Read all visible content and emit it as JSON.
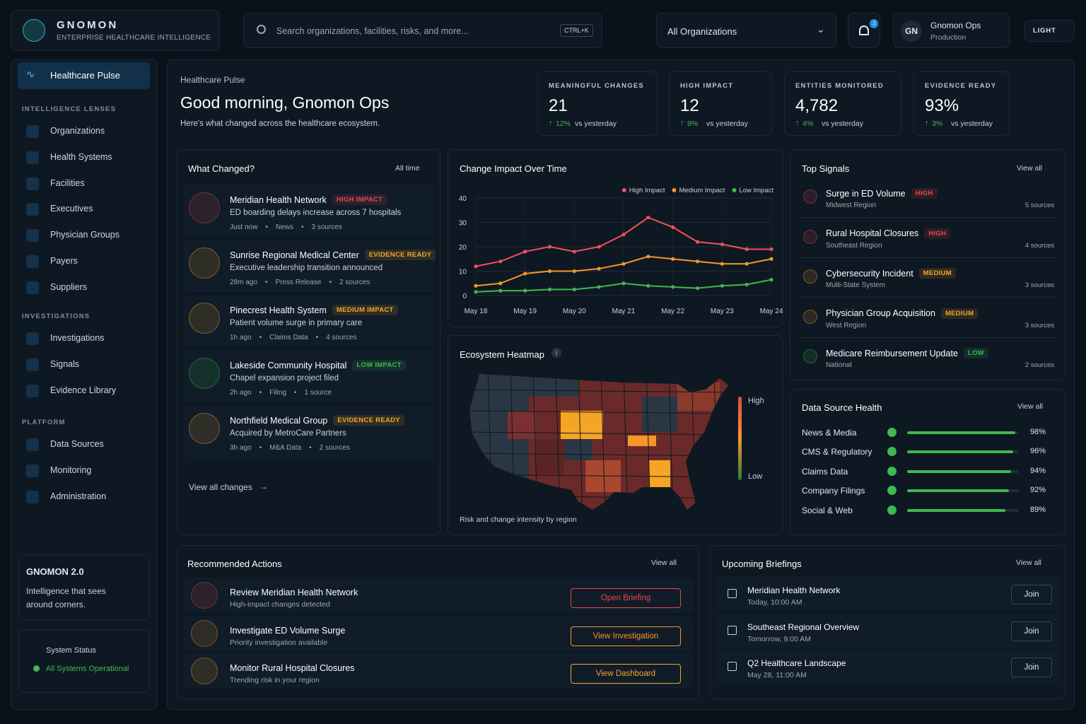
{
  "brand": {
    "name": "GNOMON",
    "tagline": "ENTERPRISE HEALTHCARE INTELLIGENCE"
  },
  "search": {
    "placeholder": "Search organizations, facilities, risks, and more...",
    "shortcut": "CTRL+K"
  },
  "org_select": "All Organizations",
  "notifications": "3",
  "user": {
    "initials": "GN",
    "name": "Gnomon Ops",
    "env": "Production"
  },
  "theme": "LIGHT",
  "nav": {
    "active": "Healthcare Pulse",
    "sections": [
      {
        "title": "INTELLIGENCE LENSES",
        "items": [
          "Organizations",
          "Health Systems",
          "Facilities",
          "Executives",
          "Physician Groups",
          "Payers",
          "Suppliers"
        ]
      },
      {
        "title": "INVESTIGATIONS",
        "items": [
          "Investigations",
          "Signals",
          "Evidence Library"
        ]
      },
      {
        "title": "PLATFORM",
        "items": [
          "Data Sources",
          "Monitoring",
          "Administration"
        ]
      }
    ]
  },
  "promo": {
    "title": "GNOMON 2.0",
    "text": "Intelligence that sees around corners."
  },
  "status": {
    "title": "System Status",
    "value": "All Systems Operational"
  },
  "header": {
    "crumb": "Healthcare Pulse",
    "greeting": "Good morning, Gnomon Ops",
    "subtitle": "Here's what changed across the healthcare ecosystem."
  },
  "kpis": [
    {
      "label": "MEANINGFUL CHANGES",
      "value": "21",
      "delta": "12%",
      "delta_text": "vs yesterday"
    },
    {
      "label": "HIGH IMPACT",
      "value": "12",
      "delta": "9%",
      "delta_text": "vs yesterday"
    },
    {
      "label": "ENTITIES MONITORED",
      "value": "4,782",
      "delta": "4%",
      "delta_text": "vs yesterday"
    },
    {
      "label": "EVIDENCE READY",
      "value": "93%",
      "delta": "3%",
      "delta_text": "vs yesterday"
    }
  ],
  "changes": {
    "title": "What Changed?",
    "filter": "All time",
    "footer": "View all changes",
    "items": [
      {
        "org": "Meridian Health Network",
        "badge": "HIGH IMPACT",
        "color": "#e5484d",
        "desc": "ED boarding delays increase across 7 hospitals",
        "time": "Just now",
        "source": "News",
        "sources": "3 sources"
      },
      {
        "org": "Sunrise Regional Medical Center",
        "badge": "EVIDENCE READY",
        "color": "#f5a524",
        "desc": "Executive leadership transition announced",
        "time": "28m ago",
        "source": "Press Release",
        "sources": "2 sources"
      },
      {
        "org": "Pinecrest Health System",
        "badge": "MEDIUM IMPACT",
        "color": "#f5a524",
        "desc": "Patient volume surge in primary care",
        "time": "1h ago",
        "source": "Claims Data",
        "sources": "4 sources"
      },
      {
        "org": "Lakeside Community Hospital",
        "badge": "LOW IMPACT",
        "color": "#3fb950",
        "desc": "Chapel expansion project filed",
        "time": "2h ago",
        "source": "Filing",
        "sources": "1 source"
      },
      {
        "org": "Northfield Medical Group",
        "badge": "EVIDENCE READY",
        "color": "#f5a524",
        "desc": "Acquired by MetroCare Partners",
        "time": "3h ago",
        "source": "M&A Data",
        "sources": "2 sources"
      }
    ]
  },
  "chart_data": {
    "type": "line",
    "title": "Change Impact Over Time",
    "categories": [
      "May 18",
      null,
      "May 19",
      null,
      "May 20",
      null,
      "May 21",
      null,
      "May 22",
      null,
      "May 23",
      null,
      "May 24"
    ],
    "ylim": [
      0,
      40
    ],
    "yticks": [
      0,
      10,
      20,
      30,
      40
    ],
    "grid": true,
    "legend": "top-right",
    "series": [
      {
        "name": "High Impact",
        "color": "#f0505a",
        "values": [
          12,
          14,
          18,
          20,
          18,
          20,
          25,
          32,
          28,
          22,
          21,
          19,
          19
        ]
      },
      {
        "name": "Medium Impact",
        "color": "#f5962a",
        "values": [
          4,
          5,
          9,
          10,
          10,
          11,
          13,
          16,
          15,
          14,
          13,
          13,
          15
        ]
      },
      {
        "name": "Low Impact",
        "color": "#3fb950",
        "values": [
          1.5,
          2,
          2,
          2.5,
          2.5,
          3.5,
          5,
          4,
          3.5,
          3,
          4,
          4.5,
          6.5
        ]
      }
    ]
  },
  "heatmap": {
    "title": "Ecosystem Heatmap",
    "high": "High",
    "low": "Low",
    "caption": "Risk and change intensity by region"
  },
  "signals": {
    "title": "Top Signals",
    "view": "View all",
    "items": [
      {
        "title": "Surge in ED Volume",
        "badge": "HIGH",
        "color": "#e5484d",
        "region": "Midwest Region",
        "sources": "5 sources"
      },
      {
        "title": "Rural Hospital Closures",
        "badge": "HIGH",
        "color": "#e5484d",
        "region": "Southeast Region",
        "sources": "4 sources"
      },
      {
        "title": "Cybersecurity Incident",
        "badge": "MEDIUM",
        "color": "#f5a524",
        "region": "Multi-State System",
        "sources": "3 sources"
      },
      {
        "title": "Physician Group Acquisition",
        "badge": "MEDIUM",
        "color": "#f5a524",
        "region": "West Region",
        "sources": "3 sources"
      },
      {
        "title": "Medicare Reimbursement Update",
        "badge": "LOW",
        "color": "#3fb950",
        "region": "National",
        "sources": "2 sources"
      }
    ]
  },
  "data_health": {
    "title": "Data Source Health",
    "view": "View all",
    "items": [
      {
        "name": "News & Media",
        "value": 98,
        "value_label": "98%"
      },
      {
        "name": "CMS & Regulatory",
        "value": 96,
        "value_label": "96%"
      },
      {
        "name": "Claims Data",
        "value": 94,
        "value_label": "94%"
      },
      {
        "name": "Company Filings",
        "value": 92,
        "value_label": "92%"
      },
      {
        "name": "Social & Web",
        "value": 89,
        "value_label": "89%"
      }
    ]
  },
  "actions": {
    "title": "Recommended Actions",
    "view": "View all",
    "items": [
      {
        "title": "Review Meridian Health Network",
        "sub": "High-impact changes detected",
        "button": "Open Briefing",
        "color": "#e5484d"
      },
      {
        "title": "Investigate ED Volume Surge",
        "sub": "Priority investigation available",
        "button": "View Investigation",
        "color": "#f5962a"
      },
      {
        "title": "Monitor Rural Hospital Closures",
        "sub": "Trending risk in your region",
        "button": "View Dashboard",
        "color": "#f5a524"
      }
    ]
  },
  "briefings": {
    "title": "Upcoming Briefings",
    "view": "View all",
    "items": [
      {
        "title": "Meridian Health Network",
        "time": "Today, 10:00 AM",
        "button": "Join"
      },
      {
        "title": "Southeast Regional Overview",
        "time": "Tomorrow, 9:00 AM",
        "button": "Join"
      },
      {
        "title": "Q2 Healthcare Landscape",
        "time": "May 28, 11:00 AM",
        "button": "Join"
      }
    ]
  }
}
